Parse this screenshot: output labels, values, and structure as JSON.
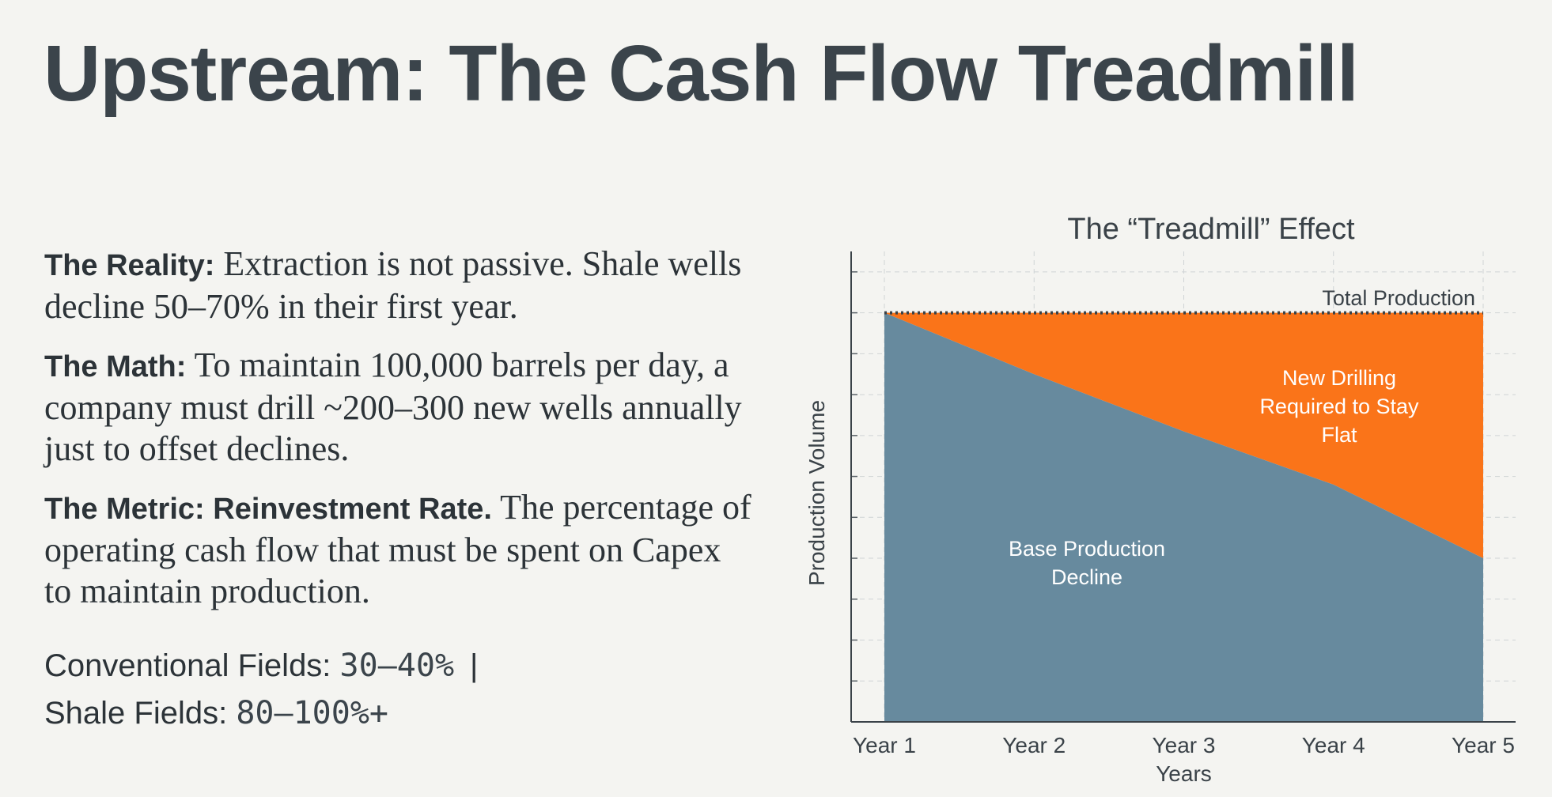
{
  "slide": {
    "title": "Upstream: The Cash Flow Treadmill"
  },
  "content": {
    "paragraphs": [
      {
        "lead": "The Reality:",
        "text": " Extraction is not passive. Shale wells decline 50–70% in their first year."
      },
      {
        "lead": "The Math:",
        "text": " To maintain 100,000 barrels per day, a company must drill ~200–300 new wells annually just to offset declines."
      },
      {
        "lead": "The Metric: Reinvestment Rate.",
        "text": " The percentage of operating cash flow that must be spent on Capex to maintain production."
      }
    ],
    "stats": [
      {
        "label": "Conventional Fields: ",
        "value": "30–40%",
        "separator": "|"
      },
      {
        "label": "Shale Fields: ",
        "value": "80–100%+"
      }
    ]
  },
  "chart_data": {
    "type": "area",
    "title": "The “Treadmill” Effect",
    "xlabel": "Years",
    "ylabel": "Production Volume",
    "categories": [
      "Year 1",
      "Year 2",
      "Year 3",
      "Year 4",
      "Year 5"
    ],
    "ylim": [
      0,
      115
    ],
    "grid": true,
    "series": [
      {
        "name": "Base Production Decline",
        "values": [
          100,
          85,
          71,
          58,
          40
        ],
        "color": "#678a9e"
      },
      {
        "name": "New Drilling Required to Stay Flat",
        "values": [
          0,
          15,
          29,
          42,
          60
        ],
        "color": "#fa7419"
      }
    ],
    "total": {
      "name": "Total Production",
      "value": 100,
      "color": "#3a4248"
    },
    "annotations": {
      "total_label": "Total Production",
      "base_label": [
        "Base Production",
        "Decline"
      ],
      "new_label": [
        "New Drilling",
        "Required to Stay",
        "Flat"
      ]
    }
  }
}
